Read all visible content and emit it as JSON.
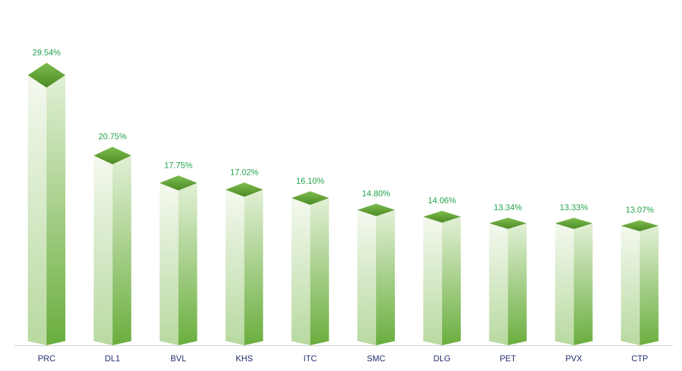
{
  "chart_data": {
    "type": "bar3d",
    "categories": [
      "PRC",
      "DL1",
      "BVL",
      "KHS",
      "ITC",
      "SMC",
      "DLG",
      "PET",
      "PVX",
      "CTP"
    ],
    "values": [
      29.54,
      20.75,
      17.75,
      17.02,
      16.1,
      14.8,
      14.06,
      13.34,
      13.33,
      13.07
    ],
    "value_labels": [
      "29.54%",
      "20.75%",
      "17.75%",
      "17.02%",
      "16.10%",
      "14.80%",
      "14.06%",
      "13.34%",
      "13.33%",
      "13.07%"
    ],
    "color": "#6aae3e"
  }
}
